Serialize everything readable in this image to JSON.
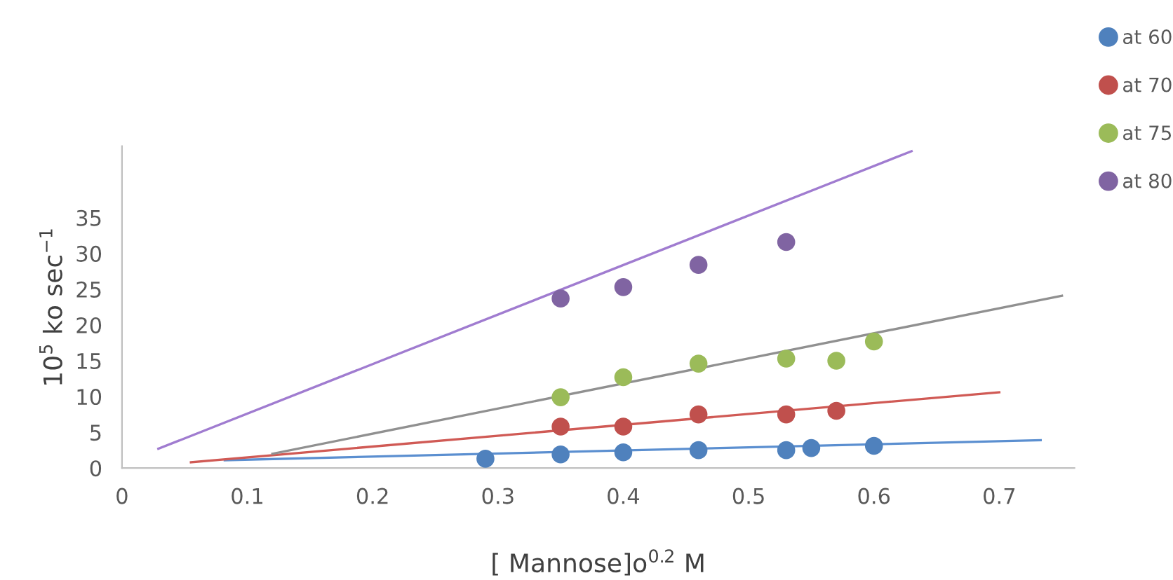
{
  "chart_data": {
    "type": "scatter",
    "xlabel": "[ Mannose]o$^{0.2}$ M",
    "ylabel": "10$^{5}$ ko sec$^{−1}$",
    "xlim": [
      0,
      0.76
    ],
    "ylim": [
      0,
      45
    ],
    "xticks": [
      0,
      0.1,
      0.2,
      0.3,
      0.4,
      0.5,
      0.6,
      0.7
    ],
    "yticks": [
      0,
      5,
      10,
      15,
      20,
      25,
      30,
      35
    ],
    "grid": false,
    "legend": "top right",
    "series": [
      {
        "name": "at 60",
        "marker": "circle",
        "color": "#4f81bd",
        "x": [
          0.29,
          0.35,
          0.4,
          0.46,
          0.53,
          0.55,
          0.6
        ],
        "values": [
          1.3,
          1.9,
          2.2,
          2.5,
          2.5,
          2.8,
          3.1
        ]
      },
      {
        "name": "at 70",
        "marker": "circle",
        "color": "#c0504d",
        "x": [
          0.35,
          0.4,
          0.46,
          0.53,
          0.57
        ],
        "values": [
          5.8,
          5.8,
          7.5,
          7.5,
          8.0
        ]
      },
      {
        "name": "at 75",
        "marker": "circle",
        "color": "#9bbb59",
        "x": [
          0.35,
          0.4,
          0.46,
          0.53,
          0.57,
          0.6
        ],
        "values": [
          9.9,
          12.7,
          14.6,
          15.3,
          15.0,
          17.7
        ]
      },
      {
        "name": "at 80",
        "marker": "circle",
        "color": "#8064a2",
        "x": [
          0.35,
          0.4,
          0.46,
          0.53
        ],
        "values": [
          23.7,
          25.3,
          28.4,
          31.6
        ]
      },
      {
        "type": "line",
        "color": "#5b8fd0",
        "x": [
          0.082,
          0.733
        ],
        "values": [
          1.1,
          3.9
        ]
      },
      {
        "type": "line",
        "color": "#d05a55",
        "x": [
          0.055,
          0.7
        ],
        "values": [
          0.8,
          10.6
        ]
      },
      {
        "type": "line",
        "color": "#909090",
        "x": [
          0.12,
          0.75
        ],
        "values": [
          2.0,
          24.1
        ]
      },
      {
        "type": "line",
        "color": "#a07cd0",
        "x": [
          0.029,
          0.63
        ],
        "values": [
          2.7,
          44.3
        ]
      }
    ]
  }
}
